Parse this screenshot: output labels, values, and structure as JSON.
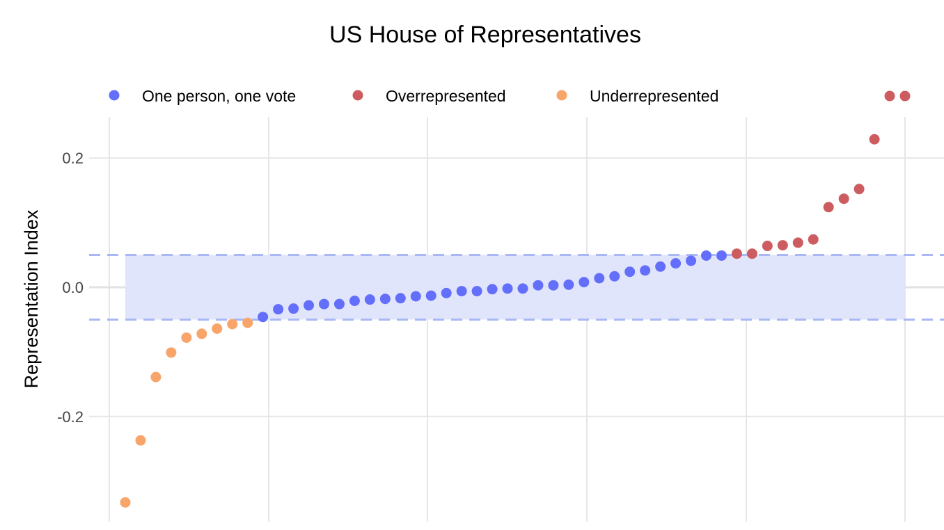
{
  "chart_data": {
    "type": "scatter",
    "title": "US House of Representatives",
    "xlabel": "",
    "ylabel": "Representation Index",
    "ylim": [
      -0.365,
      0.328
    ],
    "y_ticks": [
      0.2,
      0.0,
      -0.2
    ],
    "y_tick_labels": [
      "0.2",
      "0.0",
      "-0.2"
    ],
    "grid": true,
    "legend_position": "top",
    "band": {
      "y0": -0.05,
      "y1": 0.05,
      "color": "#dfe4fb",
      "line_color": "#a9b8f5"
    },
    "zero_line": true,
    "series": [
      {
        "name": "One person, one vote",
        "color": "#636efa",
        "x": [
          10,
          11,
          12,
          13,
          14,
          15,
          16,
          17,
          18,
          19,
          20,
          21,
          22,
          23,
          24,
          25,
          26,
          27,
          28,
          29,
          30,
          31,
          32,
          33,
          34,
          35,
          36,
          37,
          38,
          39,
          40
        ],
        "values": [
          -0.046,
          -0.034,
          -0.033,
          -0.028,
          -0.026,
          -0.026,
          -0.021,
          -0.019,
          -0.018,
          -0.017,
          -0.014,
          -0.013,
          -0.009,
          -0.006,
          -0.006,
          -0.003,
          -0.002,
          -0.002,
          0.003,
          0.003,
          0.004,
          0.008,
          0.014,
          0.017,
          0.024,
          0.026,
          0.032,
          0.037,
          0.041,
          0.049,
          0.049
        ]
      },
      {
        "name": "Overrepresented",
        "color": "#cd5c61",
        "x": [
          41,
          42,
          43,
          44,
          45,
          46,
          47,
          48,
          49,
          50,
          51,
          52
        ],
        "values": [
          0.052,
          0.052,
          0.064,
          0.065,
          0.069,
          0.074,
          0.124,
          0.137,
          0.152,
          0.229,
          0.296,
          0.296
        ]
      },
      {
        "name": "Underrepresented",
        "color": "#f9a56a",
        "x": [
          1,
          2,
          3,
          4,
          5,
          6,
          7,
          8,
          9
        ],
        "values": [
          -0.333,
          -0.237,
          -0.139,
          -0.101,
          -0.078,
          -0.072,
          -0.064,
          -0.057,
          -0.055
        ]
      }
    ]
  }
}
